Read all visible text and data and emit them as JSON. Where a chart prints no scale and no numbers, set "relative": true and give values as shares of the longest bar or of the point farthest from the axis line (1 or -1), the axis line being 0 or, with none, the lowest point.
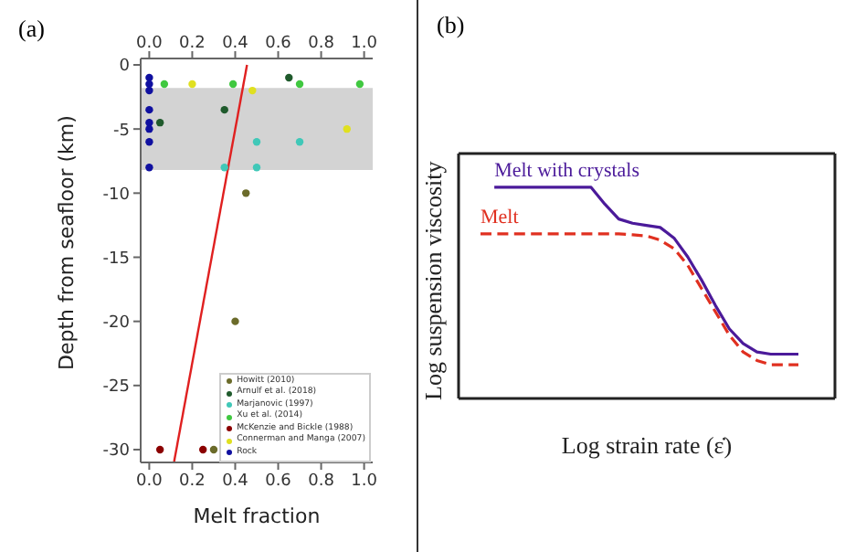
{
  "chart_data": [
    {
      "type": "scatter",
      "title": "(a)",
      "xlabel": "Melt fraction",
      "ylabel": "Depth from seafloor (km)",
      "xlim": [
        -0.04,
        1.04
      ],
      "xticks": [
        {
          "value": 0,
          "label": "0.0"
        },
        0.2,
        0.4,
        0.6,
        0.8,
        {
          "value": 1,
          "label": "1.0"
        }
      ],
      "x2lim": [
        -0.04,
        1.04
      ],
      "x2ticks": [
        {
          "value": 0,
          "label": "0.0"
        },
        0.2,
        0.4,
        0.6,
        0.8,
        {
          "value": 1,
          "label": "1.0"
        }
      ],
      "ylim": [
        -31,
        0.5
      ],
      "yticks": [
        0,
        -5,
        -10,
        -15,
        -20,
        -25,
        -30
      ],
      "bands": [
        {
          "axis": "y",
          "from": -8.2,
          "to": -1.8,
          "color": "#d3d3d3"
        }
      ],
      "legend": "bottom right",
      "marker": "circle",
      "grid": false,
      "series": [
        {
          "name": "Howitt (2010)",
          "color": "#6b6b2a",
          "x": [
            0.45,
            0.4,
            0.3
          ],
          "values": [
            -10,
            -20,
            -30
          ]
        },
        {
          "name": "Arnulf et al. (2018)",
          "color": "#1f5a2c",
          "x": [
            0.65,
            0.35,
            0.05
          ],
          "values": [
            -1,
            -3.5,
            -4.5
          ]
        },
        {
          "name": "Marjanovic (1997)",
          "color": "#40c8b8",
          "x": [
            0.5,
            0.7,
            0.35,
            0.5
          ],
          "values": [
            -6,
            -6,
            -8,
            -8
          ]
        },
        {
          "name": "Xu et al. (2014)",
          "color": "#40c840",
          "x": [
            0.07,
            0.39,
            0.7,
            0.98
          ],
          "values": [
            -1.5,
            -1.5,
            -1.5,
            -1.5
          ]
        },
        {
          "name": "McKenzie and Bickle (1988)",
          "color": "#8b0000",
          "x": [
            0.05,
            0.25
          ],
          "values": [
            -30,
            -30
          ]
        },
        {
          "name": "Connerman and Manga (2007)",
          "color": "#e0e020",
          "x": [
            0.2,
            0.48,
            0.92
          ],
          "values": [
            -1.5,
            -2,
            -5
          ]
        },
        {
          "name": "Rock",
          "color": "#1010a0",
          "x": [
            0,
            0,
            0,
            0,
            0,
            0,
            0,
            0
          ],
          "values": [
            -1,
            -1.5,
            -2,
            -3.5,
            -4.5,
            -5,
            -6,
            -8
          ]
        },
        {
          "type": "line",
          "marker": "none",
          "color": "#e02020",
          "x": [
            0.115,
            0.455
          ],
          "values": [
            -31,
            0
          ]
        }
      ]
    },
    {
      "type": "line",
      "title": "(b)",
      "xlabel": "Log strain rate (ε̇)",
      "ylabel": "Log suspension viscosity",
      "relative": true,
      "legend": false,
      "categories": [
        null,
        null,
        null,
        null,
        null,
        null,
        null,
        null,
        null,
        null,
        null,
        null,
        null,
        null,
        null,
        null,
        null,
        null,
        null,
        null,
        null,
        null,
        null,
        null
      ],
      "series": [
        {
          "name": "Melt with crystals",
          "color": "#4b1a9a",
          "line_style": "solid",
          "values": [
            null,
            1,
            1,
            1,
            1,
            1,
            1,
            1,
            1,
            0.92,
            0.85,
            0.83,
            0.82,
            0.81,
            0.76,
            0.67,
            0.56,
            0.44,
            0.33,
            0.26,
            0.22,
            0.21,
            0.21,
            0.21
          ]
        },
        {
          "name": "Melt",
          "color": "#e03020",
          "line_style": "dashed",
          "values": [
            0.78,
            0.78,
            0.78,
            0.78,
            0.78,
            0.78,
            0.78,
            0.78,
            0.78,
            0.78,
            0.78,
            0.775,
            0.77,
            0.75,
            0.71,
            0.63,
            0.52,
            0.41,
            0.3,
            0.22,
            0.18,
            0.16,
            0.16,
            0.16
          ]
        }
      ]
    }
  ]
}
